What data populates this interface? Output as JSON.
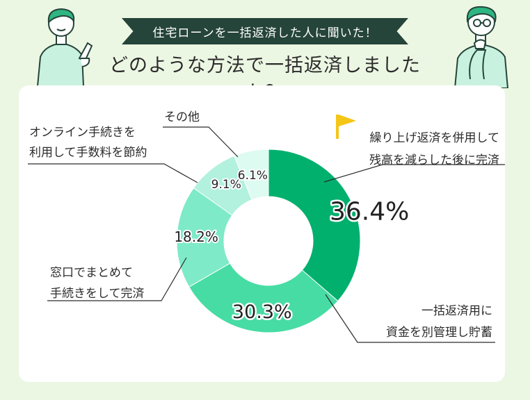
{
  "header": {
    "banner": "住宅ローンを一括返済した人に聞いた！",
    "title": "どのような方法で一括返済しましたか？"
  },
  "chart_data": {
    "type": "pie",
    "donut": true,
    "slices": [
      {
        "label_lines": [
          "繰り上げ返済を併用して",
          "残高を減らした後に完済"
        ],
        "value": 36.4,
        "value_label": "36.4%",
        "color": "#02b06e"
      },
      {
        "label_lines": [
          "一括返済用に",
          "資金を別管理し貯蓄"
        ],
        "value": 30.3,
        "value_label": "30.3%",
        "color": "#47dca4"
      },
      {
        "label_lines": [
          "窓口でまとめて",
          "手続きをして完済"
        ],
        "value": 18.2,
        "value_label": "18.2%",
        "color": "#7eeac8"
      },
      {
        "label_lines": [
          "オンライン手続きを",
          "利用して手数料を節約"
        ],
        "value": 9.1,
        "value_label": "9.1%",
        "color": "#b1f1dd"
      },
      {
        "label_lines": [
          "その他"
        ],
        "value": 6.1,
        "value_label": "6.1%",
        "color": "#ddfbf1"
      }
    ]
  }
}
